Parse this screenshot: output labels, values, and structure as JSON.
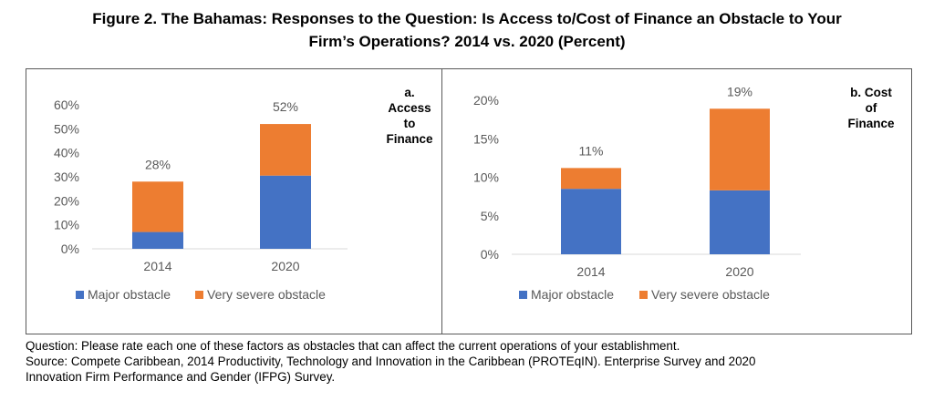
{
  "figure": {
    "title_line1": "Figure 2. The Bahamas: Responses to the Question: Is Access to/Cost of Finance an Obstacle to Your",
    "title_line2": "Firm’s Operations? 2014 vs. 2020 (Percent)",
    "question_note": "Question: Please rate each one of these factors as obstacles that can affect the current operations of your establishment.",
    "source_note_line1": "Source: Compete Caribbean, 2014 Productivity, Technology and Innovation in the Caribbean (PROTEqIN). Enterprise Survey and 2020",
    "source_note_line2": "Innovation Firm Performance and Gender (IFPG) Survey."
  },
  "colors": {
    "major": "#4472C4",
    "very_severe": "#ED7D31",
    "axis": "#D9D9D9",
    "text": "#595959"
  },
  "chart_data": [
    {
      "type": "bar",
      "stacked": true,
      "title_lines": [
        "a.",
        "Access",
        "to",
        "Finance"
      ],
      "categories": [
        "2014",
        "2020"
      ],
      "series": [
        {
          "name": "Major obstacle",
          "values": [
            7,
            30.5
          ]
        },
        {
          "name": "Very severe obstacle",
          "values": [
            21,
            21.5
          ]
        }
      ],
      "totals": [
        28,
        52
      ],
      "total_labels": [
        "28%",
        "52%"
      ],
      "ylim": [
        0,
        60
      ],
      "yticks": [
        0,
        10,
        20,
        30,
        40,
        50,
        60
      ],
      "ytick_labels": [
        "0%",
        "10%",
        "20%",
        "30%",
        "40%",
        "50%",
        "60%"
      ],
      "legend": "bottom",
      "grid": false
    },
    {
      "type": "bar",
      "stacked": true,
      "title_lines": [
        "b. Cost",
        "of",
        "Finance"
      ],
      "categories": [
        "2014",
        "2020"
      ],
      "series": [
        {
          "name": "Major obstacle",
          "values": [
            8.5,
            8.3
          ]
        },
        {
          "name": "Very severe obstacle",
          "values": [
            2.7,
            10.6
          ]
        }
      ],
      "totals": [
        11.2,
        18.9
      ],
      "total_labels": [
        "11%",
        "19%"
      ],
      "ylim": [
        0,
        20
      ],
      "yticks": [
        0,
        5,
        10,
        15,
        20
      ],
      "ytick_labels": [
        "0%",
        "5%",
        "10%",
        "15%",
        "20%"
      ],
      "legend": "bottom",
      "grid": false
    }
  ]
}
